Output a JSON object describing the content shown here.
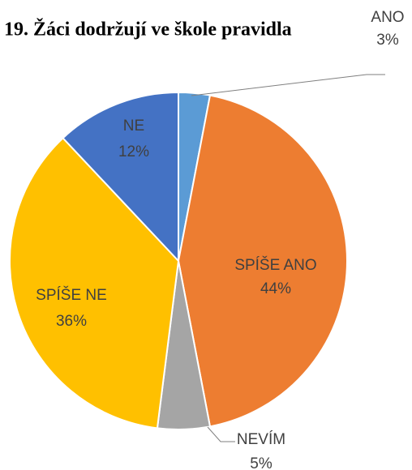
{
  "chart_data": {
    "type": "pie",
    "title": "19. Žáci dodržují ve škole pravidla",
    "categories": [
      "ANO",
      "SPÍŠE ANO",
      "NEVÍM",
      "SPÍŠE NE",
      "NE"
    ],
    "values": [
      3,
      44,
      5,
      36,
      12
    ],
    "value_labels": [
      "3%",
      "44%",
      "5%",
      "36%",
      "12%"
    ],
    "colors": [
      "#5b9bd5",
      "#ed7d31",
      "#a5a5a5",
      "#ffc000",
      "#4472c4"
    ]
  }
}
